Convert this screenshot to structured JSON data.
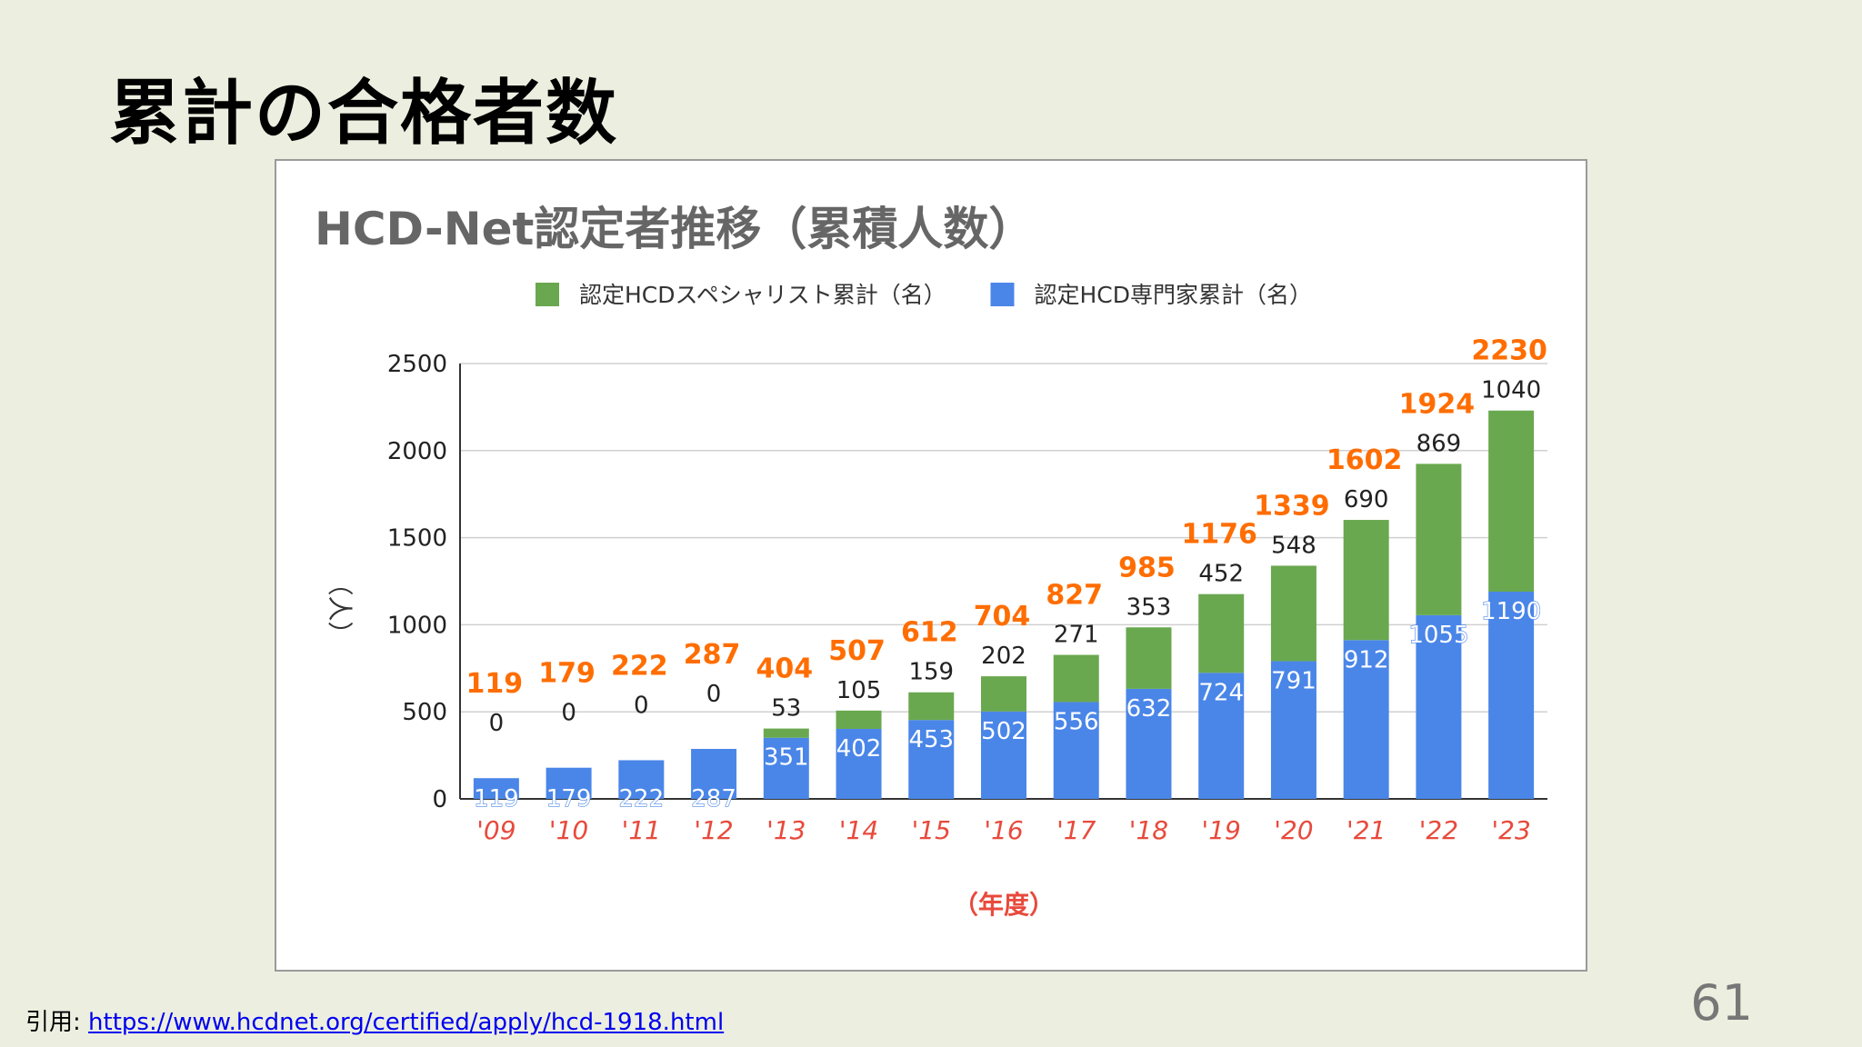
{
  "slide": {
    "title": "累計の合格者数",
    "citation_label": "引用:",
    "citation_url": "https://www.hcdnet.org/certified/apply/hcd-1918.html",
    "page_number": "61"
  },
  "chart_data": {
    "type": "bar",
    "stacked": true,
    "title": "HCD-Net認定者推移（累積人数）",
    "ylabel": "（人）",
    "xlabel": "（年度）",
    "ylim": [
      0,
      2500
    ],
    "yticks": [
      0,
      500,
      1000,
      1500,
      2000,
      2500
    ],
    "grid": true,
    "legend_position": "top",
    "categories": [
      "'09",
      "'10",
      "'11",
      "'12",
      "'13",
      "'14",
      "'15",
      "'16",
      "'17",
      "'18",
      "'19",
      "'20",
      "'21",
      "'22",
      "'23"
    ],
    "series": [
      {
        "name": "認定HCD専門家累計（名）",
        "color": "#4a86e8",
        "values": [
          119,
          179,
          222,
          287,
          351,
          402,
          453,
          502,
          556,
          632,
          724,
          791,
          912,
          1055,
          1190
        ]
      },
      {
        "name": "認定HCDスペシャリスト累計（名）",
        "color": "#6aa84f",
        "values": [
          0,
          0,
          0,
          0,
          53,
          105,
          159,
          202,
          271,
          353,
          452,
          548,
          690,
          869,
          1040
        ]
      }
    ],
    "totals": [
      119,
      179,
      222,
      287,
      404,
      507,
      612,
      704,
      827,
      985,
      1176,
      1339,
      1602,
      1924,
      2230
    ],
    "colors": {
      "total_label": "#ff6d01",
      "category_label": "#e84a3c",
      "axis_title": "#e84a3c"
    }
  }
}
